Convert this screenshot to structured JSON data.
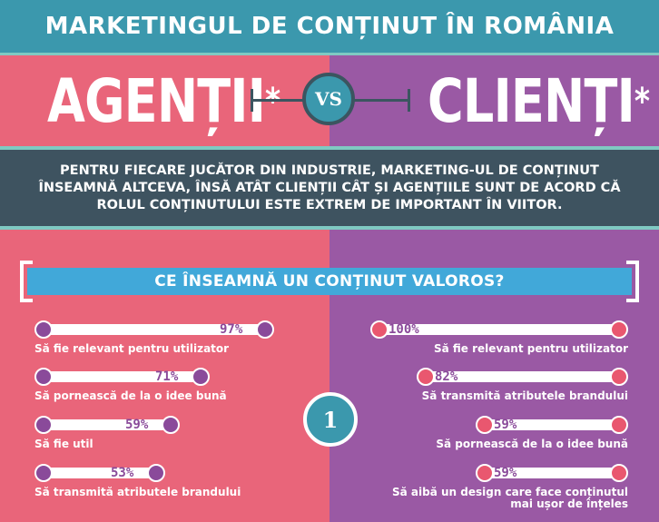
{
  "header": {
    "title": "MARKETINGUL DE CONȚINUT ÎN ROMÂNIA"
  },
  "versus": {
    "left": "AGENȚII",
    "right": "CLIENȚI",
    "star": "*",
    "vs": "VS"
  },
  "intro": {
    "text": "PENTRU FIECARE JUCĂTOR DIN INDUSTRIE, MARKETING-UL DE CONȚINUT ÎNSEAMNĂ ALTCEVA, ÎNSĂ ATÂT CLIENȚII CÂT ȘI AGENȚIILE SUNT DE ACORD CĂ ROLUL CONȚINUTULUI ESTE EXTREM DE IMPORTANT ÎN VIITOR."
  },
  "question": {
    "title": "CE ÎNSEAMNĂ UN CONȚINUT VALOROS?"
  },
  "number": "1",
  "colors": {
    "header_bg": "#3b98ad",
    "left_bg": "#e9657a",
    "right_bg": "#9a59a4",
    "info_bg": "#3e5360",
    "question_bg": "#41a8d9",
    "accent_line": "#7fc9c2"
  },
  "agencies": [
    {
      "label": "Să fie relevant pentru utilizator",
      "percent": "97%",
      "value": 97
    },
    {
      "label": "Să pornească de la o idee bună",
      "percent": "71%",
      "value": 71
    },
    {
      "label": "Să fie util",
      "percent": "59%",
      "value": 59
    },
    {
      "label": "Să transmită atributele brandului",
      "percent": "53%",
      "value": 53
    }
  ],
  "clients": [
    {
      "label": "Să fie relevant pentru utilizator",
      "label2": "",
      "percent": "100%",
      "value": 100
    },
    {
      "label": "Să transmită atributele brandului",
      "label2": "",
      "percent": "82%",
      "value": 82
    },
    {
      "label": "Să pornească de la o idee bună",
      "label2": "",
      "percent": "59%",
      "value": 59
    },
    {
      "label": "Să aibă un design care face conținutul",
      "label2": "mai ușor de înțeles",
      "percent": "59%",
      "value": 59
    }
  ]
}
